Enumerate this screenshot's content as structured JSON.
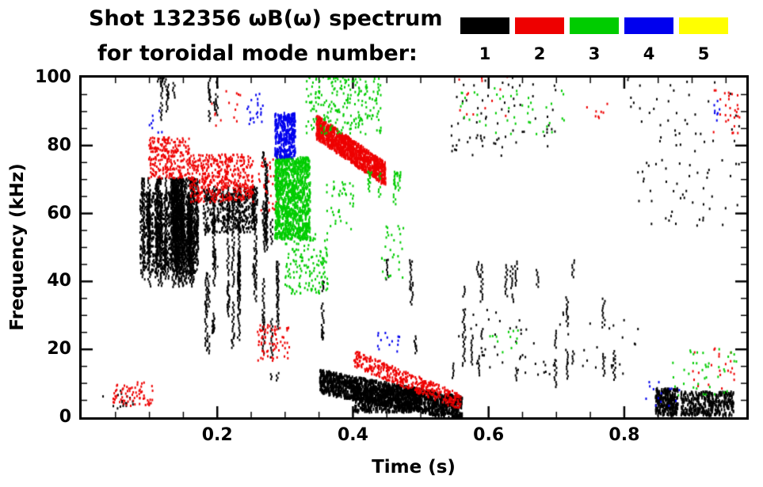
{
  "chart_data": {
    "type": "scatter",
    "title": "Shot 132356 ωB(ω) spectrum",
    "subtitle": "for toroidal mode number:",
    "xlabel": "Time (s)",
    "ylabel": "Frequency (kHz)",
    "xlim": [
      0,
      0.98
    ],
    "ylim": [
      0,
      100
    ],
    "grid": false,
    "legend_position": "top-right",
    "x_major_ticks": [
      {
        "value": 0.2,
        "label": "0.2"
      },
      {
        "value": 0.4,
        "label": "0.4"
      },
      {
        "value": 0.6,
        "label": "0.6"
      },
      {
        "value": 0.8,
        "label": "0.8"
      }
    ],
    "x_minor_step": 0.05,
    "y_major_ticks": [
      {
        "value": 0,
        "label": "0"
      },
      {
        "value": 20,
        "label": "20"
      },
      {
        "value": 40,
        "label": "40"
      },
      {
        "value": 60,
        "label": "60"
      },
      {
        "value": 80,
        "label": "80"
      },
      {
        "value": 100,
        "label": "100"
      }
    ],
    "y_minor_step": 5,
    "legend": [
      {
        "label": "1",
        "color": "#000000"
      },
      {
        "label": "2",
        "color": "#ee0000"
      },
      {
        "label": "3",
        "color": "#00cc00"
      },
      {
        "label": "4",
        "color": "#0000ee"
      },
      {
        "label": "5",
        "color": "#ffff00"
      }
    ],
    "series": [
      {
        "name": "toroidal mode n=1",
        "color": "#000000",
        "clusters": [
          {
            "type": "streaks",
            "t": [
              0.082,
              0.175
            ],
            "f": [
              38,
              70
            ],
            "s": 42,
            "seg": 8,
            "len": 14
          },
          {
            "type": "scatter",
            "t": [
              0.085,
              0.17
            ],
            "f": [
              42,
              66
            ],
            "n": 900
          },
          {
            "type": "streaks",
            "t": [
              0.105,
              0.14
            ],
            "f": [
              84,
              100
            ],
            "s": 6,
            "seg": 3,
            "len": 8
          },
          {
            "type": "streaks",
            "t": [
              0.178,
              0.262
            ],
            "f": [
              18,
              68
            ],
            "s": 14,
            "seg": 6,
            "len": 12
          },
          {
            "type": "scatter",
            "t": [
              0.178,
              0.255
            ],
            "f": [
              54,
              67
            ],
            "n": 450
          },
          {
            "type": "streaks",
            "t": [
              0.186,
              0.2
            ],
            "f": [
              85,
              100
            ],
            "s": 3,
            "seg": 3,
            "len": 7
          },
          {
            "type": "streaks",
            "t": [
              0.265,
              0.288
            ],
            "f": [
              2,
              78
            ],
            "s": 4,
            "seg": 7,
            "len": 16
          },
          {
            "type": "band",
            "t": [
              0.35,
              0.56
            ],
            "f": [
              10,
              2
            ],
            "spread": 7,
            "n": 1600,
            "mh": 4
          },
          {
            "type": "scatter",
            "t": [
              0.4,
              0.5
            ],
            "f": [
              1,
              8
            ],
            "n": 500,
            "mh": 4
          },
          {
            "type": "streaks",
            "t": [
              0.353,
              0.363
            ],
            "f": [
              22,
              40
            ],
            "s": 2,
            "seg": 4,
            "len": 9
          },
          {
            "type": "streaks",
            "t": [
              0.44,
              0.79
            ],
            "f": [
              8,
              46
            ],
            "s": 16,
            "seg": 2,
            "len": 8
          },
          {
            "type": "streaks",
            "t": [
              0.56,
              0.6
            ],
            "f": [
              10,
              45
            ],
            "s": 3,
            "seg": 3,
            "len": 10
          },
          {
            "type": "scatter",
            "t": [
              0.54,
              0.7
            ],
            "f": [
              76,
              100
            ],
            "n": 70
          },
          {
            "type": "scatter",
            "t": [
              0.8,
              0.97
            ],
            "f": [
              55,
              100
            ],
            "n": 90
          },
          {
            "type": "scatter",
            "t": [
              0.845,
              0.878
            ],
            "f": [
              0,
              8
            ],
            "n": 260,
            "mh": 4
          },
          {
            "type": "scatter",
            "t": [
              0.882,
              0.96
            ],
            "f": [
              0,
              7
            ],
            "n": 340,
            "mh": 4
          },
          {
            "type": "scatter",
            "t": [
              0.55,
              0.82
            ],
            "f": [
              12,
              32
            ],
            "n": 70
          },
          {
            "type": "scatter",
            "t": [
              0.03,
              0.08
            ],
            "f": [
              2,
              8
            ],
            "n": 18
          }
        ]
      },
      {
        "name": "toroidal mode n=2",
        "color": "#ee0000",
        "clusters": [
          {
            "type": "scatter",
            "t": [
              0.098,
              0.158
            ],
            "f": [
              70,
              82
            ],
            "n": 260
          },
          {
            "type": "scatter",
            "t": [
              0.158,
              0.252
            ],
            "f": [
              63,
              77
            ],
            "n": 480
          },
          {
            "type": "band",
            "t": [
              0.345,
              0.447
            ],
            "f": [
              85,
              71
            ],
            "spread": 7,
            "n": 950,
            "mh": 4
          },
          {
            "type": "band",
            "t": [
              0.4,
              0.558
            ],
            "f": [
              17,
              4
            ],
            "spread": 5,
            "n": 420
          },
          {
            "type": "scatter",
            "t": [
              0.045,
              0.105
            ],
            "f": [
              3,
              10
            ],
            "n": 70
          },
          {
            "type": "scatter",
            "t": [
              0.258,
              0.306
            ],
            "f": [
              16,
              27
            ],
            "n": 70
          },
          {
            "type": "scatter",
            "t": [
              0.26,
              0.29
            ],
            "f": [
              60,
              76
            ],
            "n": 40
          },
          {
            "type": "scatter",
            "t": [
              0.19,
              0.235
            ],
            "f": [
              84,
              96
            ],
            "n": 14
          },
          {
            "type": "scatter",
            "t": [
              0.93,
              0.972
            ],
            "f": [
              83,
              96
            ],
            "n": 28
          },
          {
            "type": "scatter",
            "t": [
              0.55,
              0.63
            ],
            "f": [
              88,
              100
            ],
            "n": 14
          },
          {
            "type": "scatter",
            "t": [
              0.74,
              0.78
            ],
            "f": [
              85,
              92
            ],
            "n": 8
          },
          {
            "type": "scatter",
            "t": [
              0.9,
              0.968
            ],
            "f": [
              8,
              20
            ],
            "n": 22
          }
        ]
      },
      {
        "name": "toroidal mode n=3",
        "color": "#00cc00",
        "clusters": [
          {
            "type": "scatter",
            "t": [
              0.284,
              0.336
            ],
            "f": [
              52,
              76
            ],
            "n": 950,
            "mh": 4
          },
          {
            "type": "scatter",
            "t": [
              0.298,
              0.362
            ],
            "f": [
              36,
              54
            ],
            "n": 160
          },
          {
            "type": "scatter",
            "t": [
              0.33,
              0.44
            ],
            "f": [
              83,
              100
            ],
            "n": 230
          },
          {
            "type": "streaks",
            "t": [
              0.415,
              0.478
            ],
            "f": [
              56,
              72
            ],
            "s": 7,
            "seg": 3,
            "len": 8
          },
          {
            "type": "scatter",
            "t": [
              0.36,
              0.4
            ],
            "f": [
              55,
              70
            ],
            "n": 40
          },
          {
            "type": "scatter",
            "t": [
              0.44,
              0.475
            ],
            "f": [
              40,
              56
            ],
            "n": 28
          },
          {
            "type": "scatter",
            "t": [
              0.55,
              0.72
            ],
            "f": [
              83,
              97
            ],
            "n": 45
          },
          {
            "type": "scatter",
            "t": [
              0.6,
              0.645
            ],
            "f": [
              18,
              26
            ],
            "n": 12
          },
          {
            "type": "scatter",
            "t": [
              0.87,
              0.965
            ],
            "f": [
              6,
              20
            ],
            "n": 40
          }
        ]
      },
      {
        "name": "toroidal mode n=4",
        "color": "#0000ee",
        "clusters": [
          {
            "type": "scatter",
            "t": [
              0.284,
              0.314
            ],
            "f": [
              76,
              89
            ],
            "n": 300,
            "mh": 4
          },
          {
            "type": "scatter",
            "t": [
              0.243,
              0.266
            ],
            "f": [
              86,
              95
            ],
            "n": 22
          },
          {
            "type": "scatter",
            "t": [
              0.095,
              0.118
            ],
            "f": [
              83,
              90
            ],
            "n": 8
          },
          {
            "type": "scatter",
            "t": [
              0.435,
              0.468
            ],
            "f": [
              19,
              25
            ],
            "n": 14
          },
          {
            "type": "scatter",
            "t": [
              0.83,
              0.882
            ],
            "f": [
              3,
              10
            ],
            "n": 14
          },
          {
            "type": "scatter",
            "t": [
              0.925,
              0.948
            ],
            "f": [
              87,
              93
            ],
            "n": 8
          }
        ]
      },
      {
        "name": "toroidal mode n=5",
        "color": "#ffff00",
        "clusters": []
      }
    ]
  }
}
